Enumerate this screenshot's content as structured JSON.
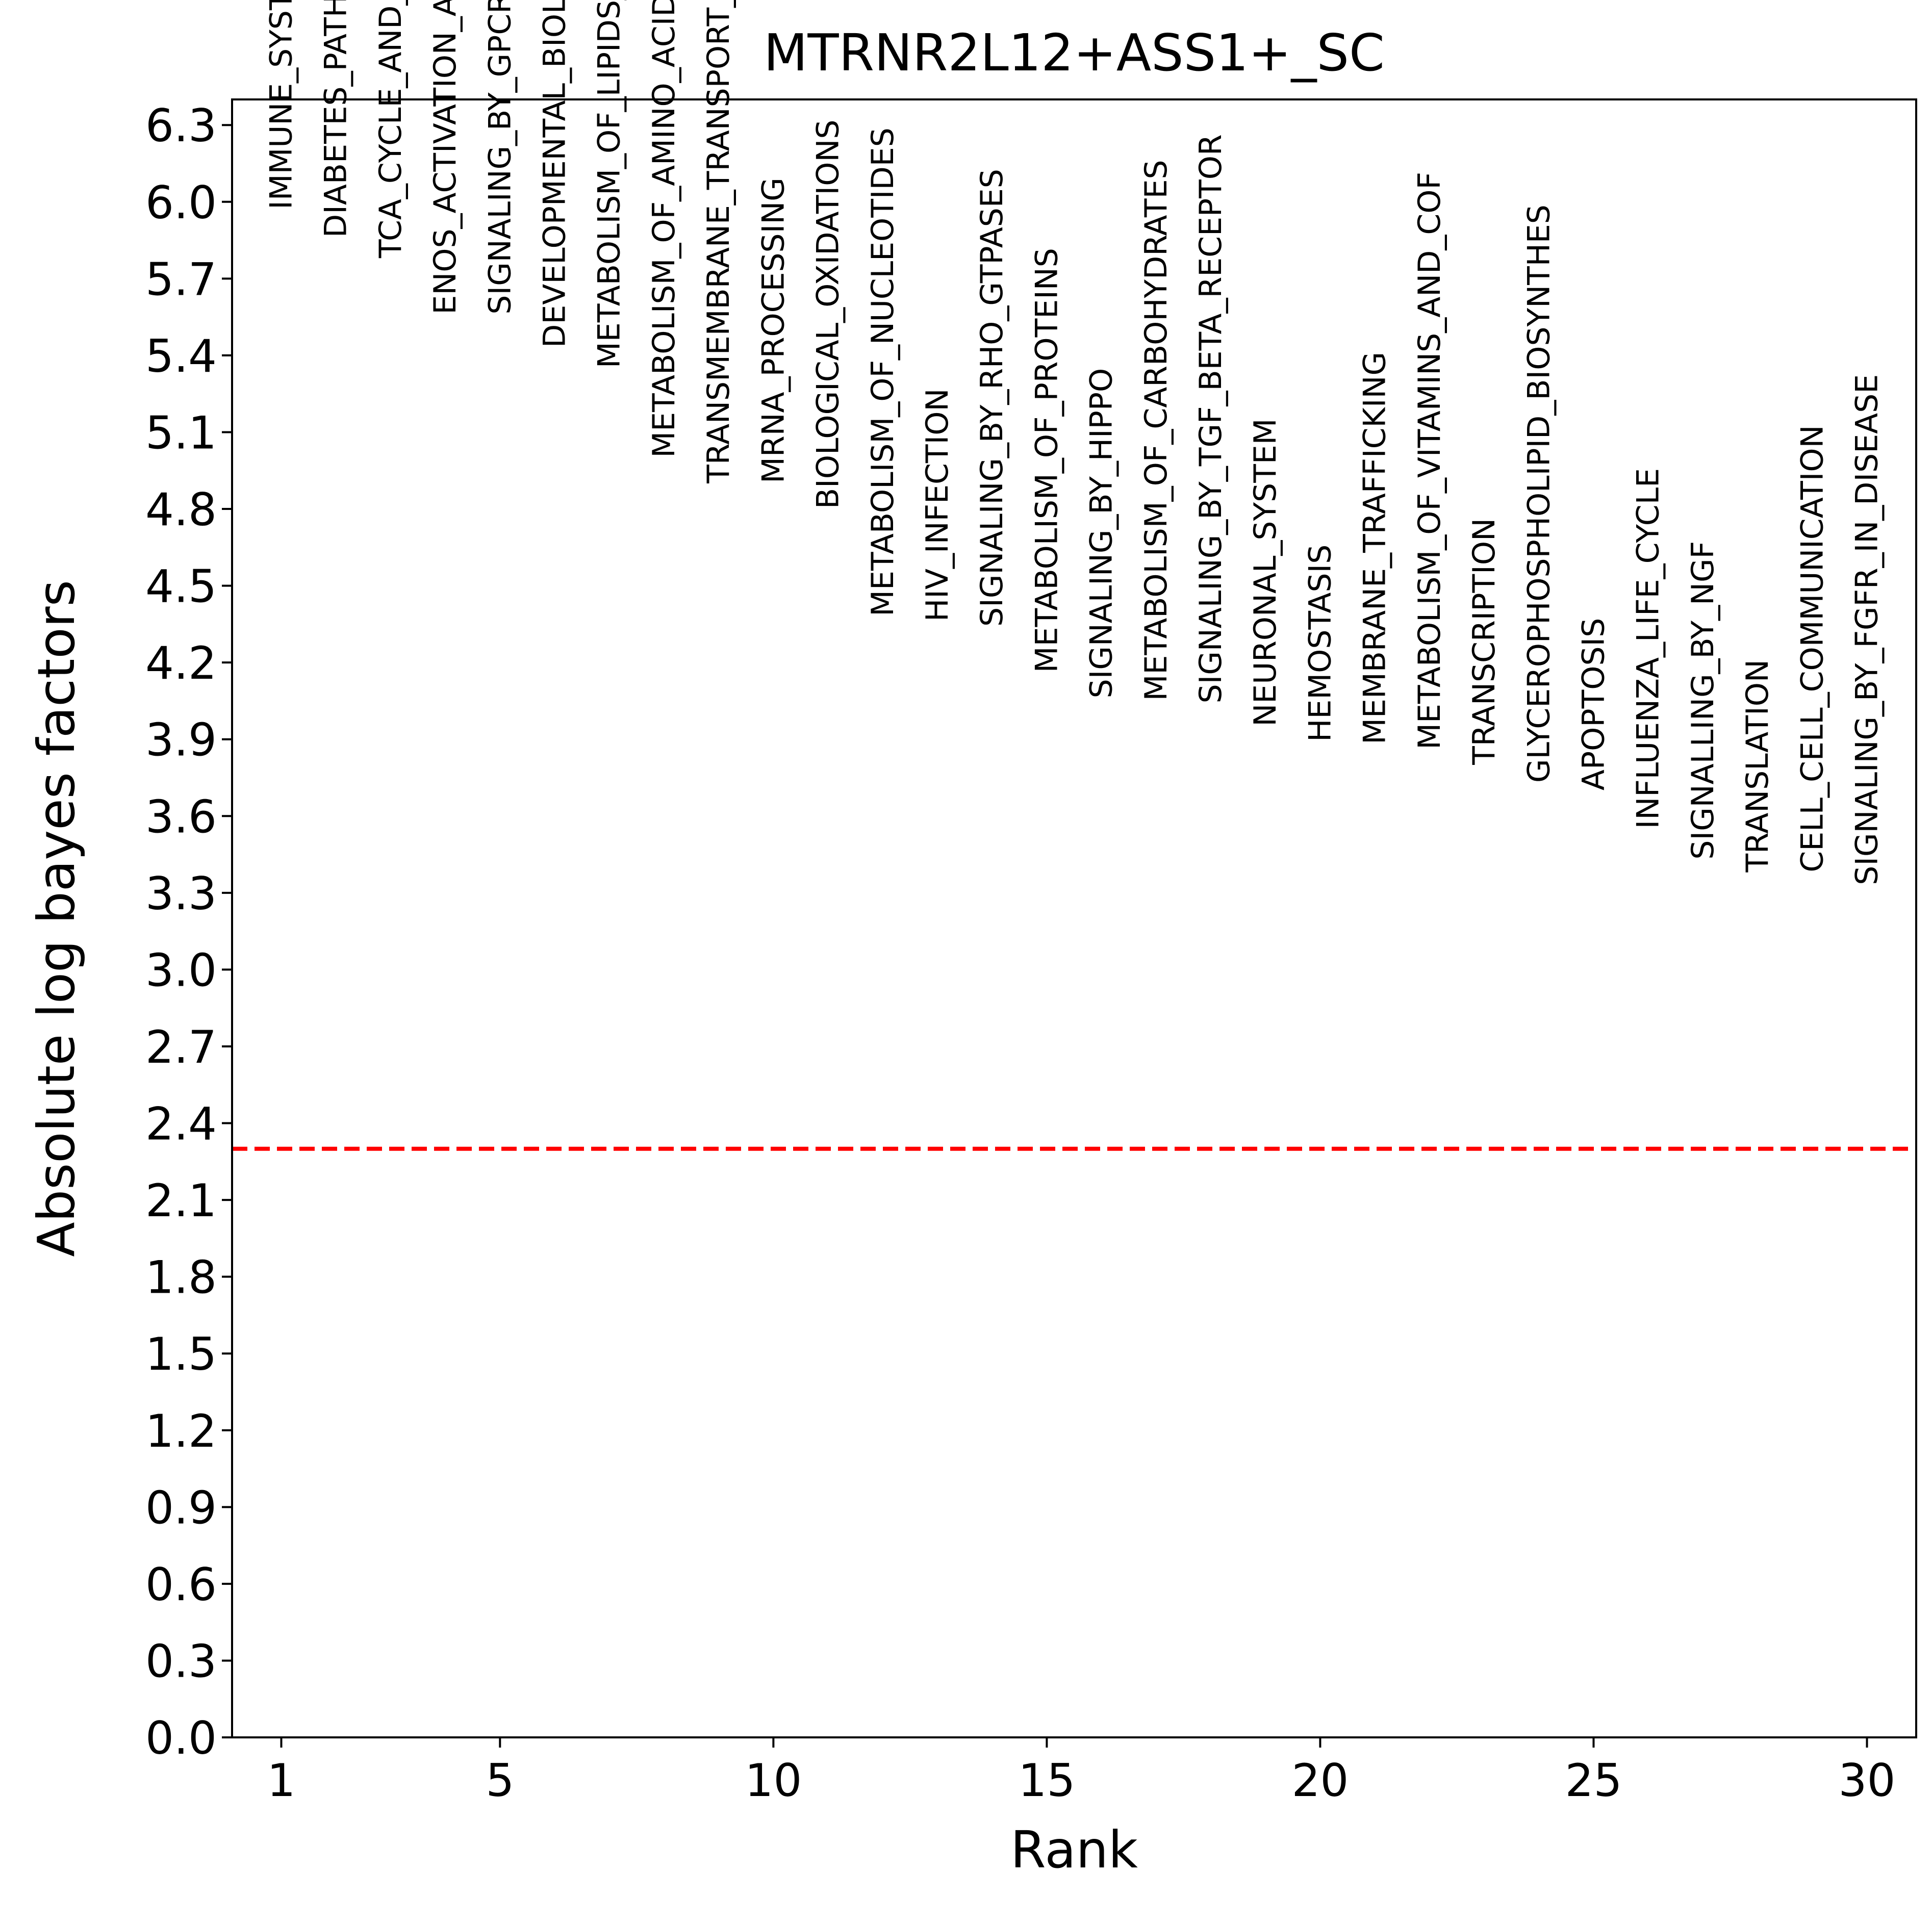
{
  "chart_data": {
    "type": "scatter",
    "title": "MTRNR2L12+ASS1+_SC",
    "xlabel": "Rank",
    "ylabel": "Absolute log bayes factors",
    "xlim": [
      0.1,
      30.9
    ],
    "ylim": [
      0.0,
      6.4
    ],
    "xticks": [
      1,
      5,
      10,
      15,
      20,
      25,
      30
    ],
    "yticks": [
      0.0,
      0.3,
      0.6,
      0.9,
      1.2,
      1.5,
      1.8,
      2.1,
      2.4,
      2.7,
      3.0,
      3.3,
      3.6,
      3.9,
      4.2,
      4.5,
      4.8,
      5.1,
      5.4,
      5.7,
      6.0,
      6.3
    ],
    "ytick_labels": [
      "0.0",
      "0.3",
      "0.6",
      "0.9",
      "1.2",
      "1.5",
      "1.8",
      "2.1",
      "2.4",
      "2.7",
      "3.0",
      "3.3",
      "3.6",
      "3.9",
      "4.2",
      "4.5",
      "4.8",
      "5.1",
      "5.4",
      "5.7",
      "6.0",
      "6.3"
    ],
    "threshold": 2.3,
    "threshold_color": "#ff0000",
    "grid": false,
    "points": [
      {
        "x": 1,
        "y": 5.97,
        "label": "IMMUNE_SYSTEM"
      },
      {
        "x": 2,
        "y": 5.86,
        "label": "DIABETES_PATHWAYS"
      },
      {
        "x": 3,
        "y": 5.78,
        "label": "TCA_CYCLE_AND_RESPIRATORY_ELEC"
      },
      {
        "x": 4,
        "y": 5.56,
        "label": "ENOS_ACTIVATION_AND_REGULATION"
      },
      {
        "x": 5,
        "y": 5.56,
        "label": "SIGNALING_BY_GPCR"
      },
      {
        "x": 6,
        "y": 5.43,
        "label": "DEVELOPMENTAL_BIOLOGY"
      },
      {
        "x": 7,
        "y": 5.35,
        "label": "METABOLISM_OF_LIPIDS_AND_LIPOP"
      },
      {
        "x": 8,
        "y": 5.0,
        "label": "METABOLISM_OF_AMINO_ACIDS_AND_"
      },
      {
        "x": 9,
        "y": 4.9,
        "label": "TRANSMEMBRANE_TRANSPORT_OF_SMA"
      },
      {
        "x": 10,
        "y": 4.9,
        "label": "MRNA_PROCESSING"
      },
      {
        "x": 11,
        "y": 4.8,
        "label": "BIOLOGICAL_OXIDATIONS"
      },
      {
        "x": 12,
        "y": 4.38,
        "label": "METABOLISM_OF_NUCLEOTIDES"
      },
      {
        "x": 13,
        "y": 4.36,
        "label": "HIV_INFECTION"
      },
      {
        "x": 14,
        "y": 4.34,
        "label": "SIGNALING_BY_RHO_GTPASES"
      },
      {
        "x": 15,
        "y": 4.16,
        "label": "METABOLISM_OF_PROTEINS"
      },
      {
        "x": 16,
        "y": 4.06,
        "label": "SIGNALING_BY_HIPPO"
      },
      {
        "x": 17,
        "y": 4.05,
        "label": "METABOLISM_OF_CARBOHYDRATES"
      },
      {
        "x": 18,
        "y": 4.04,
        "label": "SIGNALING_BY_TGF_BETA_RECEPTOR"
      },
      {
        "x": 19,
        "y": 3.95,
        "label": "NEURONAL_SYSTEM"
      },
      {
        "x": 20,
        "y": 3.89,
        "label": "HEMOSTASIS"
      },
      {
        "x": 21,
        "y": 3.88,
        "label": "MEMBRANE_TRAFFICKING"
      },
      {
        "x": 22,
        "y": 3.86,
        "label": "METABOLISM_OF_VITAMINS_AND_COF"
      },
      {
        "x": 23,
        "y": 3.8,
        "label": "TRANSCRIPTION"
      },
      {
        "x": 24,
        "y": 3.73,
        "label": "GLYCEROPHOSPHOLIPID_BIOSYNTHES"
      },
      {
        "x": 25,
        "y": 3.7,
        "label": "APOPTOSIS"
      },
      {
        "x": 26,
        "y": 3.55,
        "label": "INFLUENZA_LIFE_CYCLE"
      },
      {
        "x": 27,
        "y": 3.43,
        "label": "SIGNALLING_BY_NGF"
      },
      {
        "x": 28,
        "y": 3.38,
        "label": "TRANSLATION"
      },
      {
        "x": 29,
        "y": 3.38,
        "label": "CELL_CELL_COMMUNICATION"
      },
      {
        "x": 30,
        "y": 3.33,
        "label": "SIGNALING_BY_FGFR_IN_DISEASE"
      }
    ]
  }
}
